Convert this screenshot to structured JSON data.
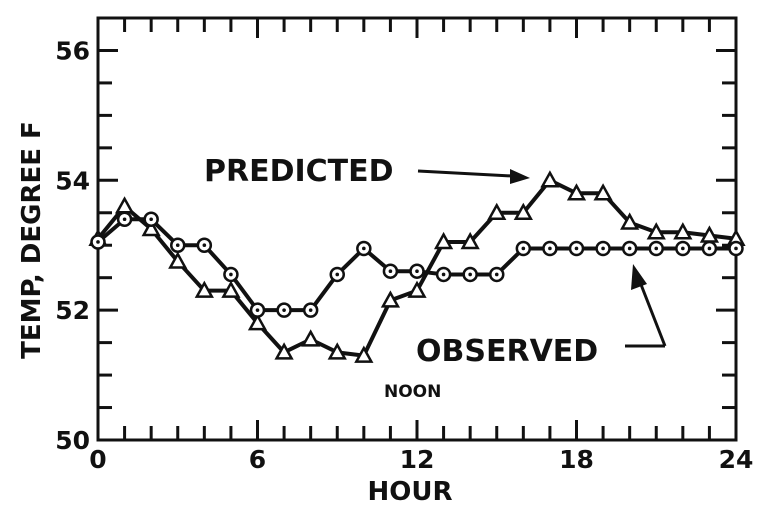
{
  "chart_data": {
    "type": "line",
    "xlabel": "HOUR",
    "ylabel": "TEMP, DEGREE F",
    "xlim": [
      0,
      24
    ],
    "ylim": [
      50,
      56.5
    ],
    "xticks": [
      "0",
      "6",
      "12",
      "18",
      "24"
    ],
    "yticks": [
      "50",
      "52",
      "54",
      "56"
    ],
    "grid": false,
    "annotations": {
      "predicted": "PREDICTED",
      "observed": "OBSERVED",
      "noon": "NOON"
    },
    "series": [
      {
        "name": "PREDICTED",
        "marker": "triangle",
        "x": [
          0,
          1,
          2,
          3,
          4,
          5,
          6,
          7,
          8,
          9,
          10,
          11,
          12,
          13,
          14,
          15,
          16,
          17,
          18,
          19,
          20,
          21,
          22,
          23,
          24
        ],
        "y": [
          53.1,
          53.6,
          53.25,
          52.75,
          52.3,
          52.3,
          51.8,
          51.35,
          51.55,
          51.35,
          51.3,
          52.15,
          52.3,
          53.05,
          53.05,
          53.5,
          53.5,
          54.0,
          53.8,
          53.8,
          53.35,
          53.2,
          53.2,
          53.15,
          53.1
        ]
      },
      {
        "name": "OBSERVED",
        "marker": "circle",
        "x": [
          0,
          1,
          2,
          3,
          4,
          5,
          6,
          7,
          8,
          9,
          10,
          11,
          12,
          13,
          14,
          15,
          16,
          17,
          18,
          19,
          20,
          21,
          22,
          23,
          24
        ],
        "y": [
          53.05,
          53.4,
          53.4,
          53.0,
          53.0,
          52.55,
          52.0,
          52.0,
          52.0,
          52.55,
          52.95,
          52.6,
          52.6,
          52.55,
          52.55,
          52.55,
          52.95,
          52.95,
          52.95,
          52.95,
          52.95,
          52.95,
          52.95,
          52.95,
          52.95
        ]
      }
    ]
  }
}
